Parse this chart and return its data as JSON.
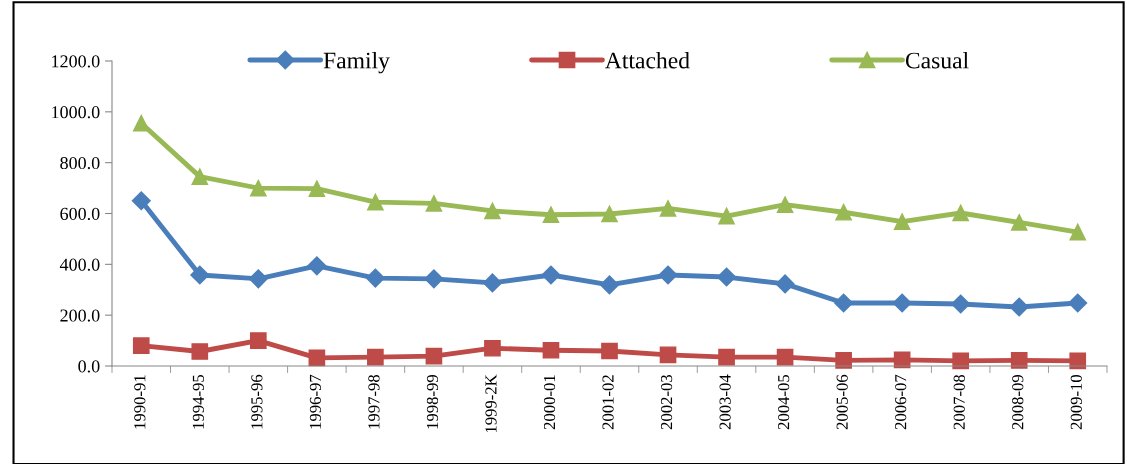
{
  "chart_data": {
    "type": "line",
    "categories": [
      "1990-91",
      "1994-95",
      "1995-96",
      "1996-97",
      "1997-98",
      "1998-99",
      "1999-2K",
      "2000-01",
      "2001-02",
      "2002-03",
      "2003-04",
      "2004-05",
      "2005-06",
      "2006-07",
      "2007-08",
      "2008-09",
      "2009-10"
    ],
    "series": [
      {
        "name": "Family",
        "color": "#4a7ebb",
        "marker": "diamond",
        "values": [
          650,
          358,
          343,
          394,
          346,
          343,
          327,
          358,
          319,
          358,
          350,
          323,
          248,
          248,
          244,
          232,
          248
        ]
      },
      {
        "name": "Attached",
        "color": "#be4b48",
        "marker": "square",
        "values": [
          80,
          57,
          100,
          32,
          35,
          39,
          70,
          62,
          59,
          44,
          35,
          35,
          22,
          24,
          20,
          22,
          20
        ]
      },
      {
        "name": "Casual",
        "color": "#98b954",
        "marker": "triangle",
        "values": [
          955,
          745,
          700,
          698,
          645,
          640,
          610,
          595,
          598,
          620,
          590,
          635,
          605,
          568,
          602,
          565,
          527
        ]
      }
    ],
    "ylim": [
      0,
      1200
    ],
    "yticks": [
      {
        "value": 0,
        "label": "0.0"
      },
      {
        "value": 200,
        "label": "200.0"
      },
      {
        "value": 400,
        "label": "400.0"
      },
      {
        "value": 600,
        "label": "600.0"
      },
      {
        "value": 800,
        "label": "800.0"
      },
      {
        "value": 1000,
        "label": "1000.0"
      },
      {
        "value": 1200,
        "label": "1200.0"
      }
    ],
    "grid": false,
    "legend": "top",
    "line_style": "solid"
  }
}
